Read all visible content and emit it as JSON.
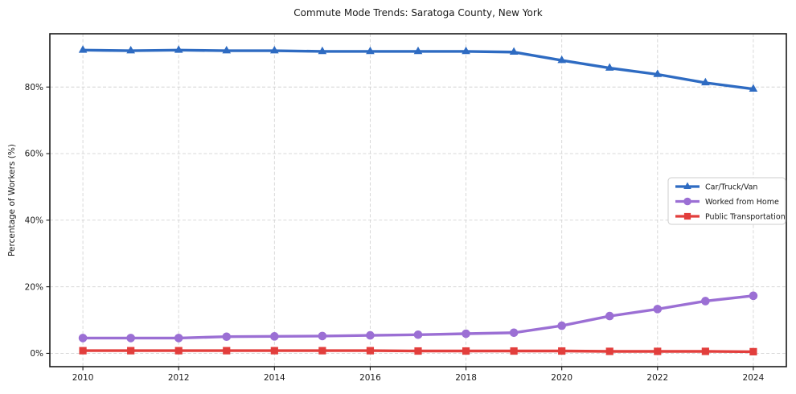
{
  "chart_data": {
    "type": "line",
    "title": "Commute Mode Trends: Saratoga County, New York",
    "xlabel": "",
    "ylabel": "Percentage of Workers (%)",
    "x": [
      2010,
      2011,
      2012,
      2013,
      2014,
      2015,
      2016,
      2017,
      2018,
      2019,
      2020,
      2021,
      2022,
      2023,
      2024
    ],
    "x_ticks": [
      2010,
      2012,
      2014,
      2016,
      2018,
      2020,
      2022,
      2024
    ],
    "y_ticks": [
      0,
      20,
      40,
      60,
      80
    ],
    "y_tick_suffix": "%",
    "xlim": [
      2009.31,
      2024.69
    ],
    "ylim": [
      -4,
      96
    ],
    "grid": true,
    "legend_position": "center-right",
    "series": [
      {
        "name": "Car/Truck/Van",
        "color": "#2e6bc2",
        "marker": "triangle",
        "values": [
          91.1,
          90.9,
          91.1,
          90.9,
          90.9,
          90.7,
          90.7,
          90.7,
          90.7,
          90.5,
          88.0,
          85.7,
          83.8,
          81.3,
          79.4
        ]
      },
      {
        "name": "Worked from Home",
        "color": "#9b6fd4",
        "marker": "circle",
        "values": [
          4.6,
          4.6,
          4.6,
          5.0,
          5.1,
          5.2,
          5.4,
          5.6,
          5.9,
          6.2,
          8.3,
          11.2,
          13.3,
          15.7,
          17.3
        ]
      },
      {
        "name": "Public Transportation",
        "color": "#e23e3c",
        "marker": "square",
        "values": [
          0.8,
          0.8,
          0.8,
          0.8,
          0.8,
          0.8,
          0.8,
          0.7,
          0.7,
          0.7,
          0.7,
          0.6,
          0.6,
          0.6,
          0.5
        ]
      }
    ]
  }
}
